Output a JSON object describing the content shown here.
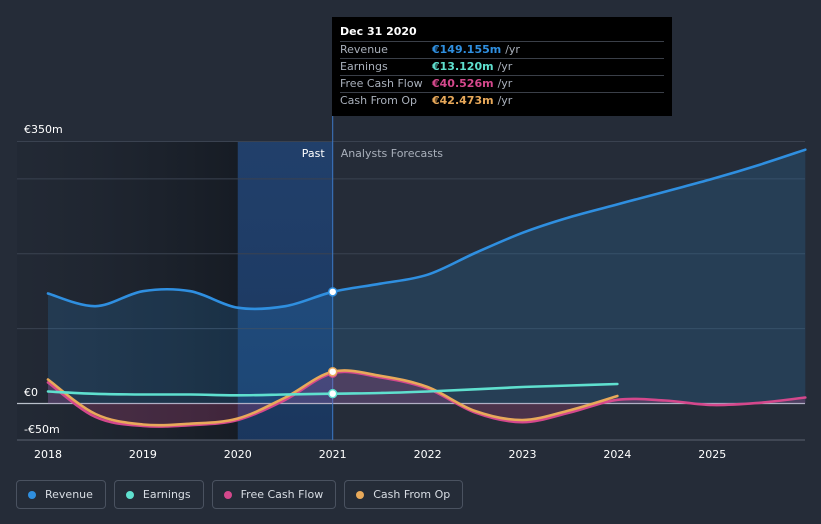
{
  "chart_data": {
    "type": "line",
    "x_ticks": [
      "2018",
      "2019",
      "2020",
      "2021",
      "2022",
      "2023",
      "2024",
      "2025"
    ],
    "xlim": [
      2017.65,
      2025.98
    ],
    "ylim": [
      -50,
      350
    ],
    "y_ticks": [
      {
        "label": "€350m",
        "value": 350
      },
      {
        "label": "€0",
        "value": 0
      },
      {
        "label": "-€50m",
        "value": -50
      }
    ],
    "grid_values": [
      350,
      300,
      200,
      100,
      0
    ],
    "past_label": "Past",
    "forecast_label": "Analysts Forecasts",
    "past_end": 2021.0,
    "past_highlight_start": 2020.0,
    "series": [
      {
        "name": "Revenue",
        "color": "#2f8fe0",
        "fill": true,
        "points": [
          [
            2018.0,
            147
          ],
          [
            2018.5,
            130
          ],
          [
            2019.0,
            150
          ],
          [
            2019.5,
            150
          ],
          [
            2020.0,
            128
          ],
          [
            2020.5,
            130
          ],
          [
            2021.0,
            149.155
          ],
          [
            2021.5,
            160
          ],
          [
            2022.0,
            172
          ],
          [
            2022.5,
            201
          ],
          [
            2023.0,
            228
          ],
          [
            2023.5,
            249
          ],
          [
            2024.0,
            266
          ],
          [
            2024.5,
            283
          ],
          [
            2025.0,
            300
          ],
          [
            2025.5,
            319
          ],
          [
            2025.98,
            339
          ]
        ]
      },
      {
        "name": "Earnings",
        "color": "#5fe0cf",
        "fill": false,
        "points": [
          [
            2018.0,
            16
          ],
          [
            2018.5,
            13
          ],
          [
            2019.0,
            12
          ],
          [
            2019.5,
            12
          ],
          [
            2020.0,
            11
          ],
          [
            2020.5,
            12
          ],
          [
            2021.0,
            13.12
          ],
          [
            2021.5,
            14
          ],
          [
            2022.0,
            16
          ],
          [
            2022.5,
            19
          ],
          [
            2023.0,
            22
          ],
          [
            2023.5,
            24
          ],
          [
            2024.0,
            26
          ]
        ]
      },
      {
        "name": "Free Cash Flow",
        "color": "#d4488c",
        "fill": true,
        "points": [
          [
            2018.0,
            28
          ],
          [
            2018.5,
            -18
          ],
          [
            2019.0,
            -30
          ],
          [
            2019.5,
            -29
          ],
          [
            2020.0,
            -22
          ],
          [
            2020.5,
            5
          ],
          [
            2021.0,
            40.526
          ],
          [
            2021.5,
            35
          ],
          [
            2022.0,
            20
          ],
          [
            2022.5,
            -12
          ],
          [
            2023.0,
            -25
          ],
          [
            2023.5,
            -12
          ],
          [
            2024.0,
            5
          ],
          [
            2024.5,
            4
          ],
          [
            2025.0,
            -2
          ],
          [
            2025.5,
            1
          ],
          [
            2025.98,
            8
          ]
        ]
      },
      {
        "name": "Cash From Op",
        "color": "#e8a95a",
        "fill": false,
        "points": [
          [
            2018.0,
            32
          ],
          [
            2018.5,
            -14
          ],
          [
            2019.0,
            -28
          ],
          [
            2019.5,
            -27
          ],
          [
            2020.0,
            -20
          ],
          [
            2020.5,
            8
          ],
          [
            2021.0,
            42.473
          ],
          [
            2021.5,
            37
          ],
          [
            2022.0,
            22
          ],
          [
            2022.5,
            -10
          ],
          [
            2023.0,
            -22
          ],
          [
            2023.5,
            -9
          ],
          [
            2024.0,
            10
          ]
        ]
      }
    ],
    "highlight_x": 2021.0,
    "highlight_markers": [
      {
        "series": "Revenue",
        "value": 149.155
      },
      {
        "series": "Earnings",
        "value": 13.12
      },
      {
        "series": "Free Cash Flow",
        "value": 40.526
      },
      {
        "series": "Cash From Op",
        "value": 42.473
      }
    ]
  },
  "tooltip": {
    "date": "Dec 31 2020",
    "rows": [
      {
        "label": "Revenue",
        "value": "€149.155m",
        "unit": "/yr",
        "color": "#2f8fe0"
      },
      {
        "label": "Earnings",
        "value": "€13.120m",
        "unit": "/yr",
        "color": "#5fe0cf"
      },
      {
        "label": "Free Cash Flow",
        "value": "€40.526m",
        "unit": "/yr",
        "color": "#d4488c"
      },
      {
        "label": "Cash From Op",
        "value": "€42.473m",
        "unit": "/yr",
        "color": "#e8a95a"
      }
    ]
  },
  "legend": {
    "items": [
      {
        "label": "Revenue",
        "color": "#2f8fe0"
      },
      {
        "label": "Earnings",
        "color": "#5fe0cf"
      },
      {
        "label": "Free Cash Flow",
        "color": "#d4488c"
      },
      {
        "label": "Cash From Op",
        "color": "#e8a95a"
      }
    ]
  }
}
